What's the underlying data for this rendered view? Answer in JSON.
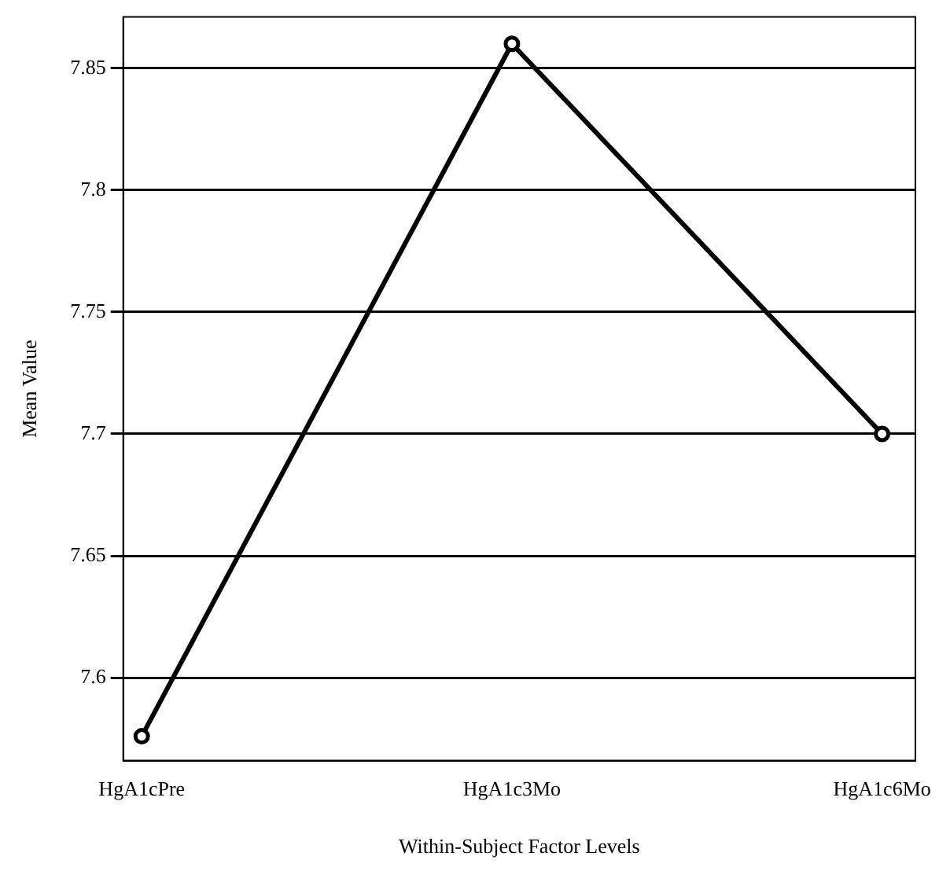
{
  "chart_data": {
    "type": "line",
    "xlabel": "Within-Subject Factor Levels",
    "ylabel": "Mean Value",
    "categories": [
      "HgA1cPre",
      "HgA1c3Mo",
      "HgA1c6Mo"
    ],
    "series": [
      {
        "color": "#000000",
        "values": [
          7.576,
          7.86,
          7.7
        ]
      }
    ],
    "ylim": [
      7.566,
      7.871
    ],
    "yticks": [
      7.6,
      7.65,
      7.7,
      7.75,
      7.8,
      7.85
    ],
    "grid": "y",
    "legend": false,
    "marker": "circle",
    "line_style": "solid"
  }
}
